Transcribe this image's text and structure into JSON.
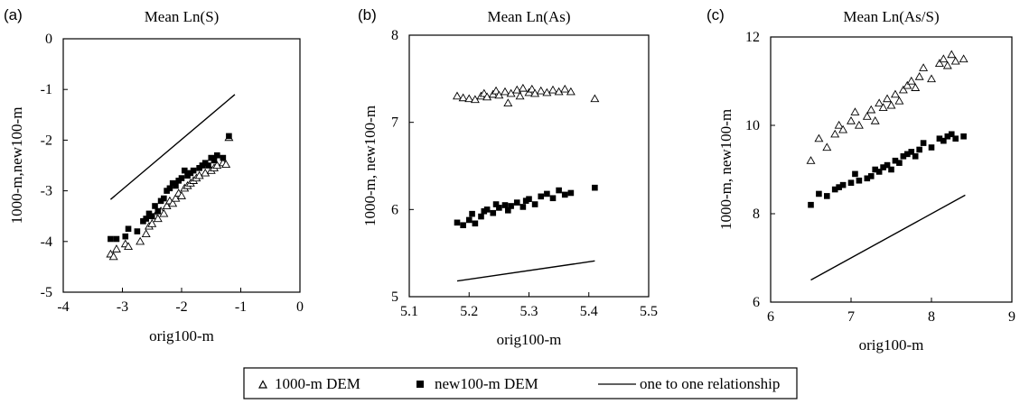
{
  "legend": {
    "items": [
      {
        "label": "1000-m DEM",
        "marker": "triangle-open"
      },
      {
        "label": "new100-m DEM",
        "marker": "square-filled"
      },
      {
        "label": "one to one relationship",
        "marker": "line"
      }
    ]
  },
  "chart_data": [
    {
      "type": "scatter",
      "panel_label": "(a)",
      "title": "Mean Ln(S)",
      "xlabel": "orig100-m",
      "ylabel": "1000-m,new100-m",
      "xlim": [
        -4,
        0
      ],
      "ylim": [
        -5,
        0
      ],
      "xticks": [
        -4,
        -3,
        -2,
        -1,
        0
      ],
      "yticks": [
        -5,
        -4,
        -3,
        -2,
        -1,
        0
      ],
      "xtick_labels": [
        "-4",
        "-3",
        "-2",
        "-1",
        "0"
      ],
      "ytick_labels": [
        "-5",
        "-4",
        "-3",
        "-2",
        "-1",
        "0"
      ],
      "series": [
        {
          "name": "1000-m DEM",
          "marker": "triangle-open",
          "x": [
            -3.2,
            -3.15,
            -3.1,
            -2.95,
            -2.9,
            -2.7,
            -2.6,
            -2.55,
            -2.5,
            -2.45,
            -2.4,
            -2.35,
            -2.3,
            -2.25,
            -2.2,
            -2.15,
            -2.1,
            -2.05,
            -2.0,
            -1.95,
            -1.9,
            -1.85,
            -1.8,
            -1.75,
            -1.7,
            -1.6,
            -1.5,
            -1.45,
            -1.4,
            -1.3,
            -1.25,
            -1.2
          ],
          "y": [
            -4.25,
            -4.3,
            -4.15,
            -4.05,
            -4.1,
            -4.0,
            -3.85,
            -3.7,
            -3.65,
            -3.5,
            -3.55,
            -3.4,
            -3.45,
            -3.3,
            -3.2,
            -3.25,
            -3.15,
            -3.05,
            -3.1,
            -2.95,
            -2.9,
            -2.85,
            -2.8,
            -2.75,
            -2.7,
            -2.65,
            -2.6,
            -2.55,
            -2.5,
            -2.45,
            -2.48,
            -1.95
          ]
        },
        {
          "name": "new100-m DEM",
          "marker": "square-filled",
          "x": [
            -3.2,
            -3.1,
            -2.95,
            -2.9,
            -2.75,
            -2.65,
            -2.6,
            -2.55,
            -2.5,
            -2.45,
            -2.4,
            -2.35,
            -2.3,
            -2.25,
            -2.2,
            -2.15,
            -2.1,
            -2.05,
            -2.0,
            -1.95,
            -1.9,
            -1.85,
            -1.8,
            -1.7,
            -1.65,
            -1.6,
            -1.55,
            -1.5,
            -1.45,
            -1.4,
            -1.3,
            -1.2
          ],
          "y": [
            -3.95,
            -3.95,
            -3.9,
            -3.75,
            -3.8,
            -3.6,
            -3.55,
            -3.45,
            -3.5,
            -3.3,
            -3.4,
            -3.2,
            -3.15,
            -3.0,
            -2.95,
            -2.85,
            -2.9,
            -2.8,
            -2.75,
            -2.6,
            -2.7,
            -2.65,
            -2.6,
            -2.55,
            -2.5,
            -2.45,
            -2.5,
            -2.35,
            -2.4,
            -2.3,
            -2.35,
            -1.92
          ]
        },
        {
          "name": "one to one relationship",
          "marker": "line",
          "x": [
            -3.2,
            -1.1
          ],
          "y": [
            -3.17,
            -1.1
          ]
        }
      ]
    },
    {
      "type": "scatter",
      "panel_label": "(b)",
      "title": "Mean Ln(As)",
      "xlabel": "orig100-m",
      "ylabel": "1000-m, new100-m",
      "xlim": [
        5.1,
        5.5
      ],
      "ylim": [
        5,
        8
      ],
      "xticks": [
        5.1,
        5.2,
        5.3,
        5.4,
        5.5
      ],
      "yticks": [
        5,
        6,
        7,
        8
      ],
      "xtick_labels": [
        "5.1",
        "5.2",
        "5.3",
        "5.4",
        "5.5"
      ],
      "ytick_labels": [
        "5",
        "6",
        "7",
        "8"
      ],
      "series": [
        {
          "name": "1000-m DEM",
          "marker": "triangle-open",
          "x": [
            5.18,
            5.19,
            5.2,
            5.21,
            5.22,
            5.225,
            5.23,
            5.24,
            5.245,
            5.25,
            5.26,
            5.265,
            5.27,
            5.28,
            5.285,
            5.29,
            5.3,
            5.305,
            5.31,
            5.32,
            5.33,
            5.34,
            5.35,
            5.36,
            5.37,
            5.41
          ],
          "y": [
            7.3,
            7.28,
            7.27,
            7.26,
            7.3,
            7.33,
            7.29,
            7.32,
            7.36,
            7.31,
            7.35,
            7.22,
            7.33,
            7.37,
            7.3,
            7.39,
            7.34,
            7.38,
            7.33,
            7.36,
            7.34,
            7.37,
            7.35,
            7.38,
            7.35,
            7.27
          ]
        },
        {
          "name": "new100-m DEM",
          "marker": "square-filled",
          "x": [
            5.18,
            5.19,
            5.2,
            5.205,
            5.21,
            5.22,
            5.225,
            5.23,
            5.24,
            5.245,
            5.25,
            5.26,
            5.265,
            5.27,
            5.28,
            5.29,
            5.295,
            5.3,
            5.31,
            5.32,
            5.33,
            5.34,
            5.35,
            5.36,
            5.37,
            5.41
          ],
          "y": [
            5.85,
            5.82,
            5.88,
            5.95,
            5.84,
            5.92,
            5.98,
            6.0,
            5.96,
            6.06,
            6.02,
            6.05,
            5.99,
            6.04,
            6.08,
            6.03,
            6.1,
            6.12,
            6.06,
            6.15,
            6.18,
            6.13,
            6.22,
            6.17,
            6.19,
            6.25
          ]
        },
        {
          "name": "one to one relationship",
          "marker": "line",
          "x": [
            5.18,
            5.41
          ],
          "y": [
            5.18,
            5.41
          ]
        }
      ]
    },
    {
      "type": "scatter",
      "panel_label": "(c)",
      "title": "Mean Ln(As/S)",
      "xlabel": "orig100-m",
      "ylabel": "1000-m, new100-m",
      "xlim": [
        6,
        9
      ],
      "ylim": [
        6,
        12
      ],
      "xticks": [
        6,
        7,
        8,
        9
      ],
      "yticks": [
        6,
        8,
        10,
        12
      ],
      "xtick_labels": [
        "6",
        "7",
        "8",
        "9"
      ],
      "ytick_labels": [
        "6",
        "8",
        "10",
        "12"
      ],
      "series": [
        {
          "name": "1000-m DEM",
          "marker": "triangle-open",
          "x": [
            6.5,
            6.6,
            6.7,
            6.8,
            6.85,
            6.9,
            7.0,
            7.05,
            7.1,
            7.2,
            7.25,
            7.3,
            7.35,
            7.4,
            7.45,
            7.5,
            7.55,
            7.6,
            7.65,
            7.7,
            7.75,
            7.8,
            7.85,
            7.9,
            8.0,
            8.1,
            8.15,
            8.2,
            8.25,
            8.3,
            8.4
          ],
          "y": [
            9.2,
            9.7,
            9.5,
            9.8,
            10.0,
            9.9,
            10.1,
            10.3,
            10.0,
            10.2,
            10.35,
            10.1,
            10.5,
            10.4,
            10.6,
            10.45,
            10.7,
            10.55,
            10.8,
            10.9,
            11.0,
            10.85,
            11.1,
            11.3,
            11.05,
            11.4,
            11.5,
            11.35,
            11.6,
            11.45,
            11.5
          ]
        },
        {
          "name": "new100-m DEM",
          "marker": "square-filled",
          "x": [
            6.5,
            6.6,
            6.7,
            6.8,
            6.85,
            6.9,
            7.0,
            7.05,
            7.1,
            7.2,
            7.25,
            7.3,
            7.35,
            7.4,
            7.45,
            7.5,
            7.55,
            7.6,
            7.65,
            7.7,
            7.75,
            7.8,
            7.85,
            7.9,
            8.0,
            8.1,
            8.15,
            8.2,
            8.25,
            8.3,
            8.4
          ],
          "y": [
            8.2,
            8.45,
            8.4,
            8.55,
            8.6,
            8.65,
            8.7,
            8.9,
            8.75,
            8.8,
            8.85,
            9.0,
            8.95,
            9.05,
            9.1,
            9.0,
            9.2,
            9.15,
            9.3,
            9.35,
            9.4,
            9.3,
            9.45,
            9.6,
            9.5,
            9.7,
            9.65,
            9.75,
            9.8,
            9.7,
            9.75
          ]
        },
        {
          "name": "one to one relationship",
          "marker": "line",
          "x": [
            6.5,
            8.42
          ],
          "y": [
            6.5,
            8.42
          ]
        }
      ]
    }
  ]
}
